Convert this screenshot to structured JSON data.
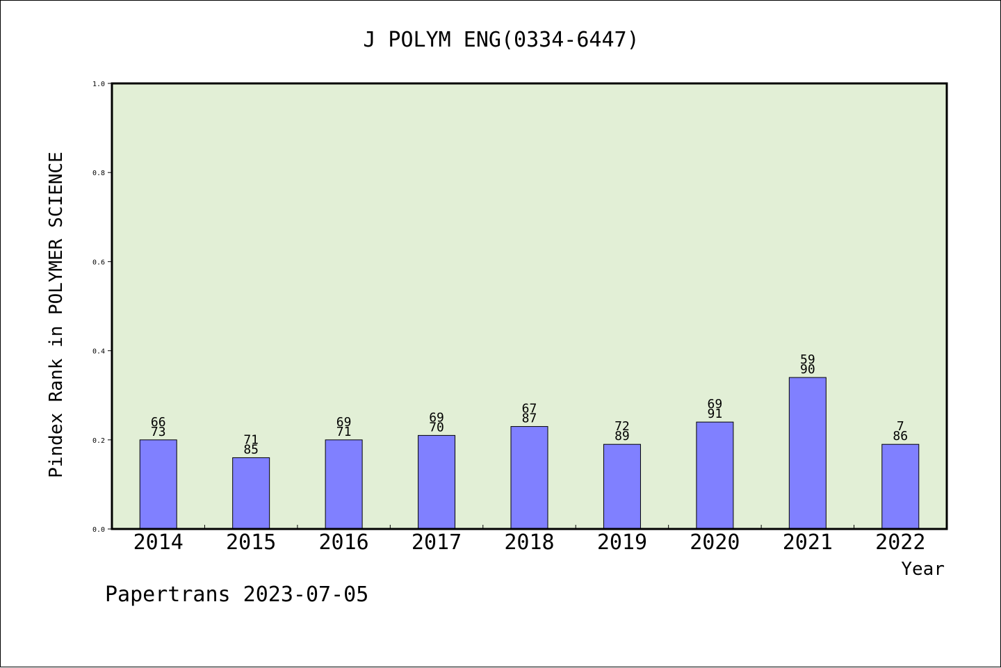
{
  "chart_data": {
    "type": "bar",
    "title": "J POLYM ENG(0334-6447)",
    "xlabel": "Year",
    "ylabel": "Pindex Rank in POLYMER SCIENCE",
    "categories": [
      "2014",
      "2015",
      "2016",
      "2017",
      "2018",
      "2019",
      "2020",
      "2021",
      "2022"
    ],
    "values": [
      0.2,
      0.16,
      0.2,
      0.21,
      0.23,
      0.19,
      0.24,
      0.34,
      0.19
    ],
    "bar_labels": [
      {
        "top": "66",
        "bottom": "73"
      },
      {
        "top": "71",
        "bottom": "85"
      },
      {
        "top": "69",
        "bottom": "71"
      },
      {
        "top": "69",
        "bottom": "70"
      },
      {
        "top": "67",
        "bottom": "87"
      },
      {
        "top": "72",
        "bottom": "89"
      },
      {
        "top": "69",
        "bottom": "91"
      },
      {
        "top": "59",
        "bottom": "90"
      },
      {
        "top": "7",
        "bottom": "86"
      }
    ],
    "ylim": [
      0,
      1.0
    ],
    "yticks": [
      "0.0",
      "0.2",
      "0.4",
      "0.6",
      "0.8",
      "1.0"
    ],
    "grid": false,
    "colors": {
      "bar": "#8080ff",
      "plot_background": "#e2efd6",
      "axis": "#000000"
    }
  },
  "footer": {
    "credit": "Papertrans 2023-07-05"
  }
}
